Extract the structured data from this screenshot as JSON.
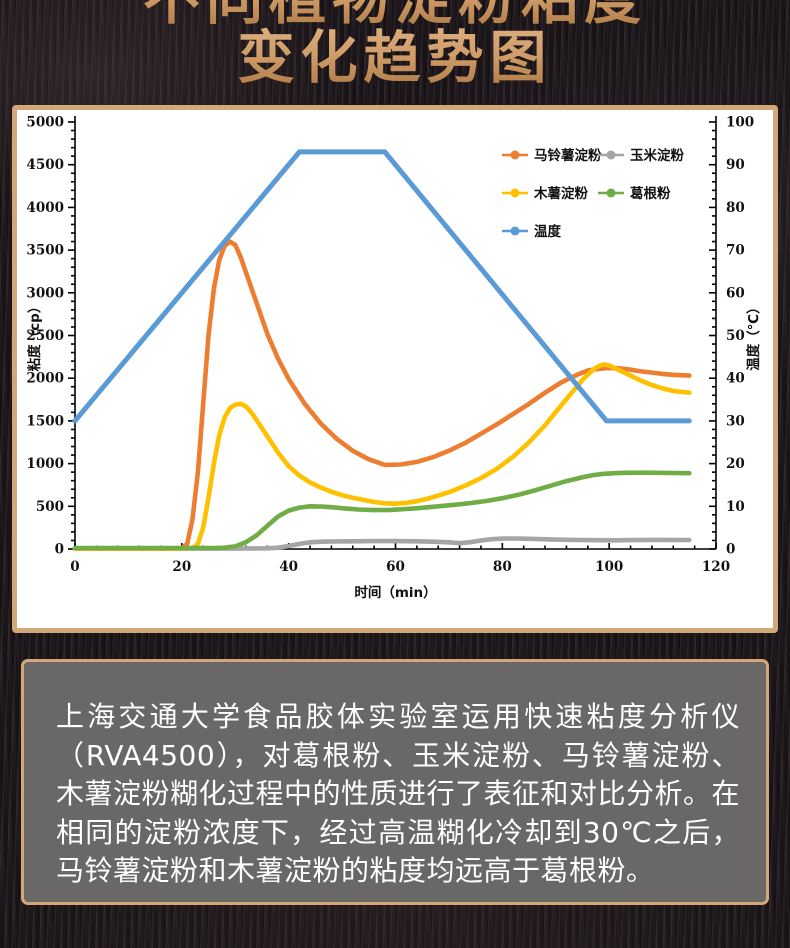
{
  "title": {
    "line1_clipped": "不同植物淀粉粘度",
    "line2": "变化趋势图"
  },
  "chart_data": {
    "type": "line",
    "x_axis": {
      "label": "时间（min）",
      "min": 0,
      "max": 120,
      "major_step": 20,
      "minor_step": 4,
      "tick_labels": [
        0,
        20,
        40,
        60,
        80,
        100,
        120
      ]
    },
    "left_axis": {
      "label": "粘度（cp）",
      "min": 0,
      "max": 5000,
      "major_step": 500,
      "minor_step": 100,
      "tick_labels": [
        0,
        500,
        1000,
        1500,
        2000,
        2500,
        3000,
        3500,
        4000,
        4500,
        5000
      ]
    },
    "right_axis": {
      "label": "温度（℃）",
      "min": 0,
      "max": 100,
      "major_step": 10,
      "minor_step": 2,
      "tick_labels": [
        0,
        10,
        20,
        30,
        40,
        50,
        60,
        70,
        80,
        90,
        100
      ]
    },
    "legend_position": "top-right-inside",
    "grid": false,
    "draw_order": [
      1,
      0,
      2,
      3,
      4
    ],
    "series": [
      {
        "name": "马铃薯淀粉",
        "color": "#ED7D31",
        "axis": "left",
        "width": 4.6,
        "points": [
          [
            0,
            5
          ],
          [
            8,
            5
          ],
          [
            16,
            5
          ],
          [
            20,
            10
          ],
          [
            21,
            60
          ],
          [
            22,
            350
          ],
          [
            23,
            900
          ],
          [
            24,
            1700
          ],
          [
            25,
            2500
          ],
          [
            26,
            3050
          ],
          [
            27,
            3380
          ],
          [
            28,
            3550
          ],
          [
            29,
            3600
          ],
          [
            30,
            3560
          ],
          [
            31,
            3420
          ],
          [
            32,
            3240
          ],
          [
            34,
            2880
          ],
          [
            36,
            2520
          ],
          [
            38,
            2230
          ],
          [
            40,
            1990
          ],
          [
            43,
            1700
          ],
          [
            46,
            1470
          ],
          [
            49,
            1290
          ],
          [
            52,
            1150
          ],
          [
            55,
            1050
          ],
          [
            58,
            985
          ],
          [
            61,
            990
          ],
          [
            64,
            1020
          ],
          [
            67,
            1075
          ],
          [
            70,
            1150
          ],
          [
            73,
            1240
          ],
          [
            76,
            1350
          ],
          [
            79,
            1460
          ],
          [
            82,
            1580
          ],
          [
            85,
            1700
          ],
          [
            88,
            1830
          ],
          [
            91,
            1950
          ],
          [
            94,
            2040
          ],
          [
            96,
            2090
          ],
          [
            98,
            2110
          ],
          [
            100,
            2120
          ],
          [
            102,
            2115
          ],
          [
            104,
            2100
          ],
          [
            106,
            2080
          ],
          [
            108,
            2065
          ],
          [
            110,
            2050
          ],
          [
            112,
            2040
          ],
          [
            115,
            2030
          ]
        ]
      },
      {
        "name": "玉米淀粉",
        "color": "#A5A5A5",
        "axis": "left",
        "width": 4.6,
        "points": [
          [
            0,
            5
          ],
          [
            10,
            5
          ],
          [
            20,
            5
          ],
          [
            30,
            5
          ],
          [
            36,
            8
          ],
          [
            38,
            15
          ],
          [
            40,
            35
          ],
          [
            42,
            60
          ],
          [
            44,
            78
          ],
          [
            46,
            85
          ],
          [
            48,
            88
          ],
          [
            52,
            90
          ],
          [
            56,
            92
          ],
          [
            60,
            92
          ],
          [
            64,
            90
          ],
          [
            67,
            85
          ],
          [
            70,
            78
          ],
          [
            72,
            68
          ],
          [
            74,
            80
          ],
          [
            76,
            100
          ],
          [
            78,
            115
          ],
          [
            80,
            122
          ],
          [
            83,
            122
          ],
          [
            86,
            118
          ],
          [
            89,
            112
          ],
          [
            92,
            108
          ],
          [
            95,
            105
          ],
          [
            98,
            103
          ],
          [
            101,
            102
          ],
          [
            104,
            104
          ],
          [
            107,
            106
          ],
          [
            110,
            107
          ],
          [
            115,
            105
          ]
        ]
      },
      {
        "name": "木薯淀粉",
        "color": "#FFC000",
        "axis": "left",
        "width": 4.6,
        "points": [
          [
            0,
            5
          ],
          [
            10,
            5
          ],
          [
            20,
            5
          ],
          [
            22,
            10
          ],
          [
            23,
            60
          ],
          [
            24,
            250
          ],
          [
            25,
            600
          ],
          [
            26,
            1000
          ],
          [
            27,
            1330
          ],
          [
            28,
            1540
          ],
          [
            29,
            1650
          ],
          [
            30,
            1690
          ],
          [
            31,
            1700
          ],
          [
            32,
            1670
          ],
          [
            33,
            1600
          ],
          [
            34,
            1510
          ],
          [
            36,
            1320
          ],
          [
            38,
            1130
          ],
          [
            40,
            970
          ],
          [
            42,
            860
          ],
          [
            44,
            780
          ],
          [
            46,
            720
          ],
          [
            48,
            670
          ],
          [
            50,
            630
          ],
          [
            52,
            600
          ],
          [
            54,
            575
          ],
          [
            56,
            550
          ],
          [
            58,
            535
          ],
          [
            60,
            530
          ],
          [
            62,
            540
          ],
          [
            64,
            560
          ],
          [
            66,
            590
          ],
          [
            68,
            625
          ],
          [
            70,
            665
          ],
          [
            73,
            740
          ],
          [
            76,
            830
          ],
          [
            79,
            940
          ],
          [
            82,
            1080
          ],
          [
            85,
            1250
          ],
          [
            88,
            1450
          ],
          [
            91,
            1680
          ],
          [
            93,
            1830
          ],
          [
            95,
            1980
          ],
          [
            97,
            2100
          ],
          [
            98,
            2140
          ],
          [
            99,
            2160
          ],
          [
            100,
            2150
          ],
          [
            101,
            2120
          ],
          [
            102,
            2090
          ],
          [
            104,
            2030
          ],
          [
            106,
            1970
          ],
          [
            108,
            1920
          ],
          [
            110,
            1880
          ],
          [
            112,
            1850
          ],
          [
            115,
            1830
          ]
        ]
      },
      {
        "name": "葛根粉",
        "color": "#70AD47",
        "axis": "left",
        "width": 4.6,
        "points": [
          [
            0,
            10
          ],
          [
            10,
            10
          ],
          [
            20,
            10
          ],
          [
            26,
            10
          ],
          [
            28,
            15
          ],
          [
            30,
            30
          ],
          [
            32,
            80
          ],
          [
            34,
            160
          ],
          [
            36,
            270
          ],
          [
            38,
            380
          ],
          [
            40,
            450
          ],
          [
            42,
            485
          ],
          [
            44,
            500
          ],
          [
            46,
            498
          ],
          [
            48,
            490
          ],
          [
            50,
            478
          ],
          [
            53,
            462
          ],
          [
            56,
            455
          ],
          [
            59,
            458
          ],
          [
            62,
            468
          ],
          [
            65,
            483
          ],
          [
            68,
            500
          ],
          [
            71,
            518
          ],
          [
            74,
            538
          ],
          [
            77,
            562
          ],
          [
            80,
            595
          ],
          [
            83,
            635
          ],
          [
            86,
            685
          ],
          [
            89,
            740
          ],
          [
            92,
            795
          ],
          [
            95,
            840
          ],
          [
            97,
            865
          ],
          [
            99,
            880
          ],
          [
            101,
            888
          ],
          [
            103,
            892
          ],
          [
            106,
            893
          ],
          [
            109,
            892
          ],
          [
            112,
            890
          ],
          [
            115,
            888
          ]
        ]
      },
      {
        "name": "温度",
        "color": "#5B9BD5",
        "axis": "right",
        "width": 5,
        "points": [
          [
            0,
            30
          ],
          [
            42,
            93
          ],
          [
            58,
            93
          ],
          [
            99.5,
            30
          ],
          [
            115,
            30
          ]
        ]
      }
    ]
  },
  "description": {
    "text": "上海交通大学食品胶体实验室运用快速粘度分析仪（RVA4500），对葛根粉、玉米淀粉、马铃薯淀粉、木薯淀粉糊化过程中的性质进行了表征和对比分析。在相同的淀粉浓度下，经过高温糊化冷却到30℃之后，马铃薯淀粉和木薯淀粉的粘度均远高于葛根粉。"
  }
}
